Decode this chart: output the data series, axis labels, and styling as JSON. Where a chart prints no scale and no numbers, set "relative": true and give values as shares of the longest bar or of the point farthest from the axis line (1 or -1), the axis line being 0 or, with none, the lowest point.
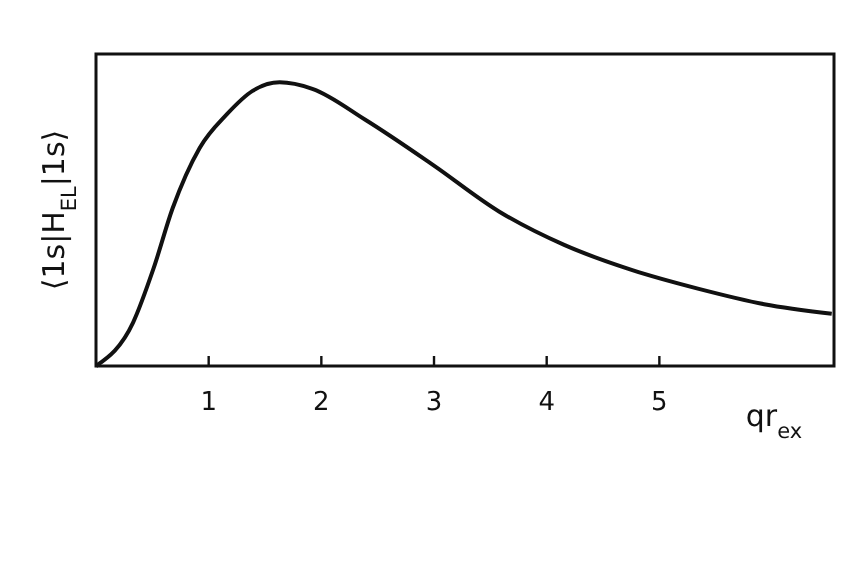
{
  "chart_data": {
    "type": "line",
    "xlabel": "qr$_{ex}$",
    "ylabel": "⟨1s|H$_{EL}$|1s⟩",
    "relative": true,
    "x": [
      0,
      0.33,
      0.51,
      0.68,
      0.92,
      1.16,
      1.39,
      1.63,
      1.92,
      2.39,
      2.99,
      3.58,
      4.16,
      4.76,
      5.35,
      5.93,
      6.53
    ],
    "series": [
      {
        "color": "#111111",
        "values": [
          0,
          0.154,
          0.343,
          0.556,
          0.769,
          0.887,
          0.97,
          1.0,
          0.977,
          0.868,
          0.709,
          0.544,
          0.426,
          0.338,
          0.272,
          0.218,
          0.184
        ]
      }
    ],
    "xlim": [
      0,
      6.55
    ],
    "xticks": [
      1,
      2,
      3,
      4,
      5
    ],
    "grid": false,
    "marker": "none",
    "line_style": "solid"
  }
}
